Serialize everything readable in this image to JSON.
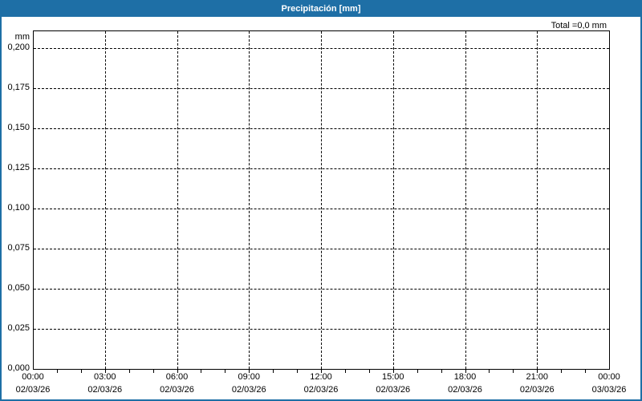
{
  "header": {
    "title": "Precipitación [mm]",
    "total_label": "Total =0,0 mm"
  },
  "colors": {
    "accent_blue": "#1E6FA6",
    "frame_blue": "#1E6FA6",
    "grid": "#000000",
    "text": "#000000",
    "title_text": "#FFFFFF",
    "background": "#FFFFFF"
  },
  "chart_data": {
    "type": "bar",
    "title": "Precipitación [mm]",
    "ylabel": "mm",
    "xlabel": "",
    "total_annotation": "Total =0,0 mm",
    "grid": true,
    "grid_style": "dashed",
    "ylim": [
      0.0,
      0.211
    ],
    "y_tick_step": 0.025,
    "y_ticks": [
      {
        "value": 0.2,
        "label": "0,200"
      },
      {
        "value": 0.175,
        "label": "0,175"
      },
      {
        "value": 0.15,
        "label": "0,150"
      },
      {
        "value": 0.125,
        "label": "0,125"
      },
      {
        "value": 0.1,
        "label": "0,100"
      },
      {
        "value": 0.075,
        "label": "0,075"
      },
      {
        "value": 0.05,
        "label": "0,050"
      },
      {
        "value": 0.025,
        "label": "0,025"
      },
      {
        "value": 0.0,
        "label": "0,000"
      }
    ],
    "x_range_hours": [
      0,
      24
    ],
    "x_minor_tick_every_hours": 1,
    "x_major_ticks": [
      {
        "hour": 0,
        "time": "00:00",
        "date": "02/03/26"
      },
      {
        "hour": 3,
        "time": "03:00",
        "date": "02/03/26"
      },
      {
        "hour": 6,
        "time": "06:00",
        "date": "02/03/26"
      },
      {
        "hour": 9,
        "time": "09:00",
        "date": "02/03/26"
      },
      {
        "hour": 12,
        "time": "12:00",
        "date": "02/03/26"
      },
      {
        "hour": 15,
        "time": "15:00",
        "date": "02/03/26"
      },
      {
        "hour": 18,
        "time": "18:00",
        "date": "02/03/26"
      },
      {
        "hour": 21,
        "time": "21:00",
        "date": "02/03/26"
      },
      {
        "hour": 24,
        "time": "00:00",
        "date": "03/03/26"
      }
    ],
    "series": [
      {
        "name": "Precipitación",
        "values": [],
        "total_mm": 0.0
      }
    ],
    "legend": "none"
  }
}
